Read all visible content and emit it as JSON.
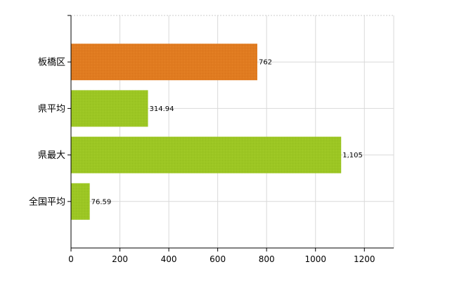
{
  "chart_data": {
    "type": "bar",
    "orientation": "horizontal",
    "categories": [
      "板橋区",
      "県平均",
      "県最大",
      "全国平均"
    ],
    "values": [
      762,
      314.94,
      1105,
      76.59
    ],
    "value_labels": [
      "762",
      "314.94",
      "1,105",
      "76.59"
    ],
    "bar_colors": [
      "#E07B20",
      "#9CC623",
      "#9CC623",
      "#9CC623"
    ],
    "xlim": [
      0,
      1320
    ],
    "xticks": [
      0,
      200,
      400,
      600,
      800,
      1000,
      1200
    ],
    "xtick_labels": [
      "0",
      "200",
      "400",
      "600",
      "800",
      "1000",
      "1200"
    ],
    "grid": true,
    "legend": "none"
  }
}
